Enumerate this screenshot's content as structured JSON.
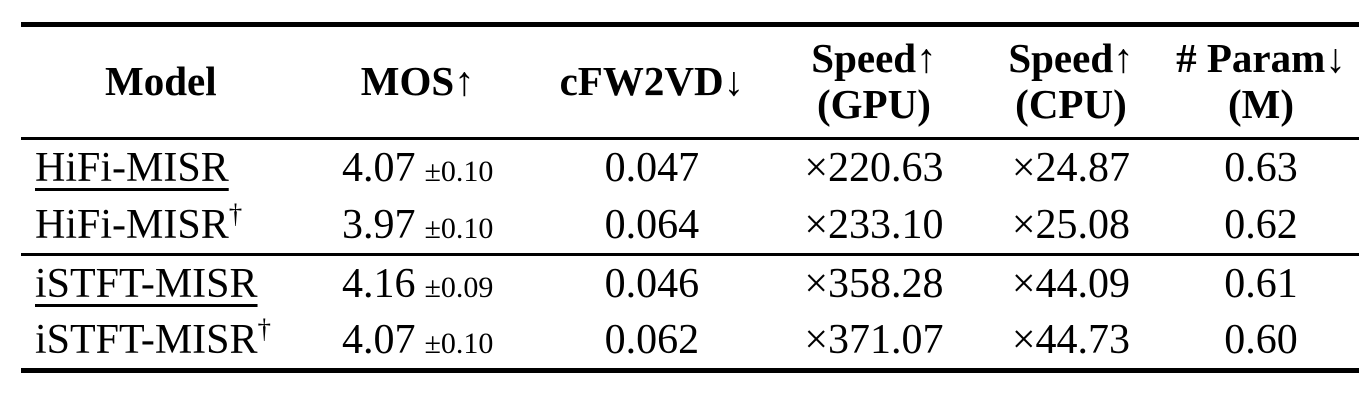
{
  "table": {
    "columns": [
      {
        "label": "Model"
      },
      {
        "label": "MOS↑"
      },
      {
        "label": "cFW2VD↓"
      },
      {
        "label": "Speed↑",
        "sublabel": "(GPU)"
      },
      {
        "label": "Speed↑",
        "sublabel": "(CPU)"
      },
      {
        "label": "# Param↓",
        "sublabel": "(M)"
      }
    ],
    "rows": [
      {
        "model": "HiFi-MISR",
        "model_sup": "",
        "underlined": true,
        "mos": "4.07",
        "mos_err": "±0.10",
        "cfw2vd": "0.047",
        "speed_gpu": "×220.63",
        "speed_cpu": "×24.87",
        "params_m": "0.63"
      },
      {
        "model": "HiFi-MISR",
        "model_sup": "†",
        "underlined": false,
        "mos": "3.97",
        "mos_err": "±0.10",
        "cfw2vd": "0.064",
        "speed_gpu": "×233.10",
        "speed_cpu": "×25.08",
        "params_m": "0.62"
      },
      {
        "model": "iSTFT-MISR",
        "model_sup": "",
        "underlined": true,
        "mos": "4.16",
        "mos_err": "±0.09",
        "cfw2vd": "0.046",
        "speed_gpu": "×358.28",
        "speed_cpu": "×44.09",
        "params_m": "0.61"
      },
      {
        "model": "iSTFT-MISR",
        "model_sup": "†",
        "underlined": false,
        "mos": "4.07",
        "mos_err": "±0.10",
        "cfw2vd": "0.062",
        "speed_gpu": "×371.07",
        "speed_cpu": "×44.73",
        "params_m": "0.60"
      }
    ]
  }
}
